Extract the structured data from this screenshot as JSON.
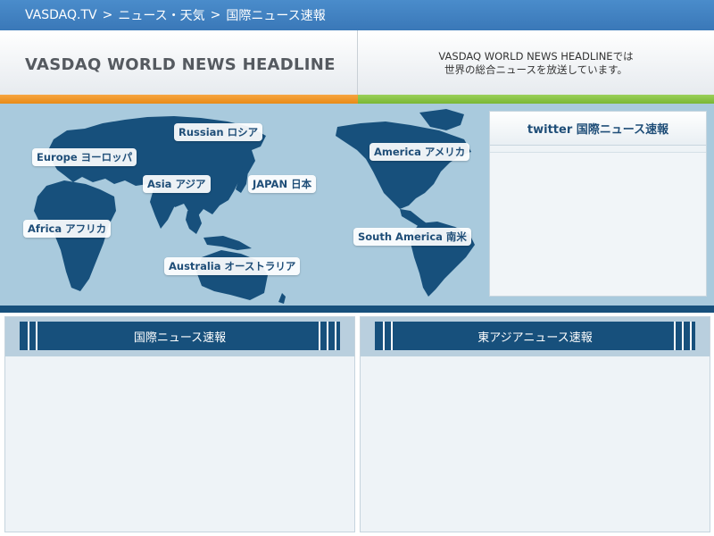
{
  "breadcrumb": {
    "home": "VASDAQ.TV",
    "section": "ニュース・天気",
    "current": "国際ニュース速報",
    "separator": ">"
  },
  "header": {
    "title": "VASDAQ WORLD NEWS HEADLINE",
    "desc_line1": "VASDAQ WORLD NEWS HEADLINEでは",
    "desc_line2": "世界の総合ニュースを放送しています。"
  },
  "map": {
    "labels": {
      "russian": "Russian ロシア",
      "europe": "Europe ヨーロッパ",
      "asia": "Asia アジア",
      "japan": "JAPAN 日本",
      "africa": "Africa アフリカ",
      "australia": "Australia オーストラリア",
      "america": "America アメリカ",
      "south_america": "South America 南米"
    }
  },
  "twitter": {
    "title": "twitter 国際ニュース速報"
  },
  "panels": {
    "left_title": "国際ニュース速報",
    "right_title": "東アジアニュース速報"
  },
  "colors": {
    "top_bar": "#3a78b8",
    "accent_orange": "#e88a17",
    "accent_green": "#79b634",
    "ocean": "#a9cadd",
    "land": "#17507c"
  }
}
